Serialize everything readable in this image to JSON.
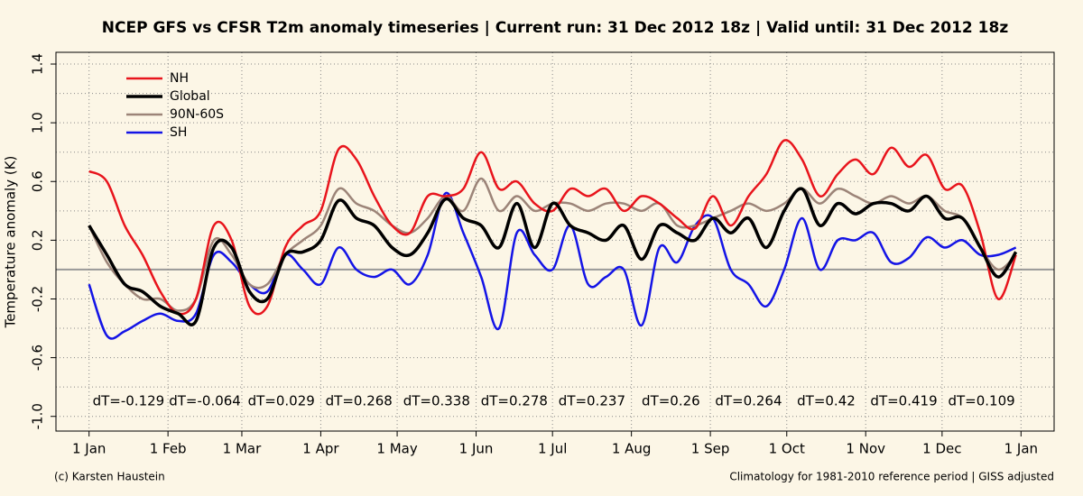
{
  "chart_data": {
    "type": "line",
    "title": "NCEP GFS vs CFSR T2m anomaly timeseries | Current run: 31 Dec 2012 18z | Valid until: 31 Dec 2012 18z",
    "y_label": "Temperature anomaly (K)",
    "x": [
      0,
      7,
      14,
      21,
      28,
      35,
      42,
      49,
      56,
      63,
      70,
      77,
      84,
      91,
      98,
      105,
      112,
      119,
      126,
      133,
      140,
      147,
      154,
      161,
      168,
      175,
      182,
      189,
      196,
      203,
      210,
      217,
      224,
      231,
      238,
      245,
      252,
      259,
      266,
      273,
      280,
      287,
      294,
      301,
      308,
      315,
      322,
      329,
      336,
      343,
      350,
      357,
      364
    ],
    "series": [
      {
        "name": "NH",
        "color": "#e8141c",
        "width": 2.5,
        "values": [
          0.67,
          0.6,
          0.3,
          0.1,
          -0.15,
          -0.3,
          -0.2,
          0.3,
          0.2,
          -0.25,
          -0.25,
          0.15,
          0.3,
          0.4,
          0.82,
          0.75,
          0.5,
          0.3,
          0.25,
          0.5,
          0.5,
          0.55,
          0.8,
          0.55,
          0.6,
          0.45,
          0.4,
          0.55,
          0.5,
          0.55,
          0.4,
          0.5,
          0.45,
          0.35,
          0.28,
          0.5,
          0.3,
          0.5,
          0.65,
          0.88,
          0.75,
          0.5,
          0.65,
          0.75,
          0.65,
          0.83,
          0.7,
          0.78,
          0.55,
          0.57,
          0.25,
          -0.2,
          0.1
        ]
      },
      {
        "name": "Global",
        "color": "#000000",
        "width": 3.5,
        "values": [
          0.3,
          0.1,
          -0.1,
          -0.15,
          -0.25,
          -0.3,
          -0.35,
          0.15,
          0.15,
          -0.15,
          -0.2,
          0.1,
          0.12,
          0.2,
          0.47,
          0.35,
          0.3,
          0.15,
          0.1,
          0.25,
          0.48,
          0.35,
          0.3,
          0.15,
          0.45,
          0.15,
          0.45,
          0.3,
          0.25,
          0.2,
          0.3,
          0.07,
          0.3,
          0.25,
          0.2,
          0.35,
          0.25,
          0.35,
          0.15,
          0.4,
          0.55,
          0.3,
          0.45,
          0.38,
          0.45,
          0.45,
          0.4,
          0.5,
          0.35,
          0.35,
          0.15,
          -0.05,
          0.12
        ]
      },
      {
        "name": "90N-60S",
        "color": "#9c8478",
        "width": 2.5,
        "values": [
          0.3,
          0.05,
          -0.1,
          -0.2,
          -0.2,
          -0.28,
          -0.2,
          0.2,
          0.1,
          -0.1,
          -0.1,
          0.1,
          0.2,
          0.3,
          0.55,
          0.45,
          0.4,
          0.3,
          0.25,
          0.35,
          0.5,
          0.4,
          0.62,
          0.4,
          0.5,
          0.4,
          0.45,
          0.45,
          0.4,
          0.45,
          0.45,
          0.4,
          0.45,
          0.3,
          0.3,
          0.35,
          0.4,
          0.45,
          0.4,
          0.45,
          0.55,
          0.45,
          0.55,
          0.5,
          0.45,
          0.5,
          0.45,
          0.5,
          0.4,
          0.35,
          0.15,
          0.0,
          0.1
        ]
      },
      {
        "name": "SH",
        "color": "#1414e6",
        "width": 2.5,
        "values": [
          -0.1,
          -0.45,
          -0.42,
          -0.35,
          -0.3,
          -0.35,
          -0.3,
          0.1,
          0.05,
          -0.1,
          -0.15,
          0.1,
          0.0,
          -0.1,
          0.15,
          0.0,
          -0.05,
          0.0,
          -0.1,
          0.1,
          0.52,
          0.25,
          -0.05,
          -0.4,
          0.25,
          0.1,
          0.0,
          0.3,
          -0.1,
          -0.05,
          0.0,
          -0.38,
          0.15,
          0.05,
          0.3,
          0.35,
          0.0,
          -0.1,
          -0.25,
          0.0,
          0.35,
          0.0,
          0.2,
          0.2,
          0.25,
          0.05,
          0.08,
          0.22,
          0.15,
          0.2,
          0.1,
          0.1,
          0.15
        ]
      }
    ],
    "xlim": [
      -13,
      379
    ],
    "xticks": [
      {
        "value": 0,
        "label": "1 Jan"
      },
      {
        "value": 31,
        "label": "1 Feb"
      },
      {
        "value": 60,
        "label": "1 Mar"
      },
      {
        "value": 91,
        "label": "1 Apr"
      },
      {
        "value": 121,
        "label": "1 May"
      },
      {
        "value": 152,
        "label": "1 Jun"
      },
      {
        "value": 182,
        "label": "1 Jul"
      },
      {
        "value": 213,
        "label": "1 Aug"
      },
      {
        "value": 244,
        "label": "1 Sep"
      },
      {
        "value": 274,
        "label": "1 Oct"
      },
      {
        "value": 305,
        "label": "1 Nov"
      },
      {
        "value": 335,
        "label": "1 Dec"
      },
      {
        "value": 366,
        "label": "1 Jan"
      }
    ],
    "ylim": [
      -1.1,
      1.48
    ],
    "yticks": [
      {
        "value": -1.0,
        "label": "-1.0"
      },
      -0.6,
      -0.2,
      0.2,
      0.6,
      {
        "value": 1.0,
        "label": "1.0"
      },
      1.4
    ],
    "minor_yticks": [
      -0.8,
      -0.4,
      0,
      0.4,
      0.8,
      1.2
    ],
    "grid": true,
    "legend": "top-left",
    "annotations": [
      "dT=-0.129",
      "dT=-0.064",
      "dT=0.029",
      "dT=0.268",
      "dT=0.338",
      "dT=0.278",
      "dT=0.237",
      "dT=0.26",
      "dT=0.264",
      "dT=0.42",
      "dT=0.419",
      "dT=0.109"
    ],
    "footer_left": "(c) Karsten Haustein",
    "footer_right": "Climatology for 1981-2010 reference period | GISS adjusted"
  }
}
